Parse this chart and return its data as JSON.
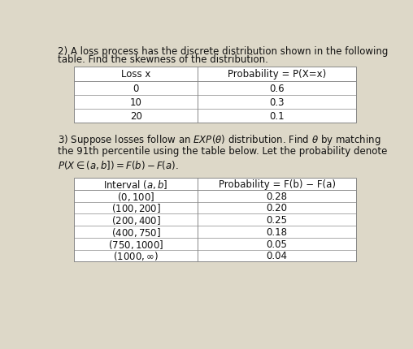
{
  "line1": "2) A loss process has the discrete distribution shown in the following",
  "line2": "table. Find the skewness of the distribution.",
  "table1_col1": "Loss x",
  "table1_col2": "Probability = P(X=x)",
  "table1_rows": [
    [
      "0",
      "0.6"
    ],
    [
      "10",
      "0.3"
    ],
    [
      "20",
      "0.1"
    ]
  ],
  "q3_line1": "3) Suppose losses follow an $EXP(\\theta)$ distribution. Find $\\theta$ by matching",
  "q3_line2": "the 91th percentile using the table below. Let the probability denote",
  "q3_line3": "$P(X \\in (a, b]) = F(b) - F(a)$.",
  "table2_col1": "Interval $(a, b]$",
  "table2_col2": "Probability = F(b) − F(a)",
  "table2_rows": [
    [
      "$(0,100]$",
      "0.28"
    ],
    [
      "$(100,200]$",
      "0.20"
    ],
    [
      "$(200,400]$",
      "0.25"
    ],
    [
      "$(400,750]$",
      "0.18"
    ],
    [
      "$(750,1000]$",
      "0.05"
    ],
    [
      "$(1000, \\infty)$",
      "0.04"
    ]
  ],
  "bg_color": "#ddd8c8",
  "line_color": "#888888",
  "text_color": "#111111",
  "font_size_body": 8.5,
  "font_size_table": 8.5,
  "table1_col_split": 0.44,
  "table2_col_split": 0.44
}
